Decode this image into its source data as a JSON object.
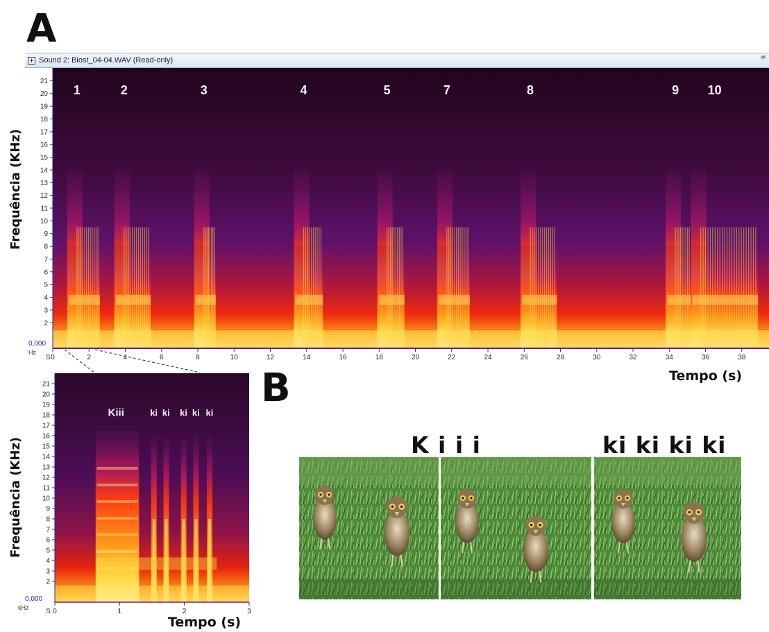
{
  "panel_a_letter": "A",
  "panel_b_letter": "B",
  "window": {
    "title": "Sound 2: Biost_04-04.WAV (Read-only)",
    "restore_glyph": "ᵅᴷ"
  },
  "colors": {
    "titlebar_text": "#102040",
    "axis_blue": "#1a2aa8",
    "spec_low": "#140518",
    "spec_mid": "#8a1a8a",
    "spec_high": "#ff2a10",
    "spec_peak": "#ffe14a"
  },
  "chart_data": [
    {
      "type": "heatmap",
      "name_on_screen": "spectrogram-main",
      "ylabel": "Frequência (KHz)",
      "xlabel": "Tempo (s)",
      "y_unit": "Hz",
      "x_unit": "S",
      "y_zero_label": "0,000",
      "xlim": [
        0,
        39.5
      ],
      "ylim": [
        0,
        22
      ],
      "y_ticks": [
        2,
        3,
        4,
        5,
        6,
        7,
        8,
        9,
        10,
        11,
        12,
        13,
        14,
        15,
        16,
        17,
        18,
        19,
        20,
        21
      ],
      "x_ticks": [
        0,
        2,
        4,
        6,
        8,
        10,
        12,
        14,
        16,
        18,
        20,
        22,
        24,
        26,
        28,
        30,
        32,
        34,
        36,
        38
      ],
      "x_tick_labels": [
        "0",
        "2",
        "4",
        "6",
        "8",
        "10",
        "12",
        "14",
        "16",
        "18",
        "20",
        "22",
        "24",
        "26",
        "28",
        "30",
        "32",
        "34",
        "36",
        "38"
      ],
      "calls": [
        {
          "label": "1",
          "start": 0.8,
          "end": 2.6
        },
        {
          "label": "2",
          "start": 3.4,
          "end": 5.4
        },
        {
          "label": "3",
          "start": 7.8,
          "end": 9.0
        },
        {
          "label": "4",
          "start": 13.3,
          "end": 14.9
        },
        {
          "label": "5",
          "start": 17.9,
          "end": 19.4
        },
        {
          "label": "7",
          "start": 21.2,
          "end": 23.0
        },
        {
          "label": "8",
          "start": 25.8,
          "end": 27.8
        },
        {
          "label": "9",
          "start": 33.8,
          "end": 35.2
        },
        {
          "label": "10",
          "start": 35.2,
          "end": 38.9
        }
      ]
    },
    {
      "type": "heatmap",
      "name_on_screen": "spectrogram-zoom",
      "ylabel": "Frequência (KHz)",
      "xlabel": "Tempo (s)",
      "y_unit": "kHz",
      "x_unit": "S",
      "y_zero_label": "0,000",
      "xlim": [
        0,
        3
      ],
      "ylim": [
        0,
        22
      ],
      "y_ticks": [
        2,
        3,
        4,
        5,
        6,
        7,
        8,
        9,
        10,
        11,
        12,
        13,
        14,
        15,
        16,
        17,
        18,
        19,
        20,
        21
      ],
      "x_ticks": [
        0,
        1,
        2,
        3
      ],
      "x_tick_labels": [
        "0",
        "1",
        "2",
        "3"
      ],
      "annotations": [
        {
          "text": "Kiii",
          "x": 0.82,
          "y": 18.3
        },
        {
          "text": "ki",
          "x": 1.47,
          "y": 18.3
        },
        {
          "text": "ki",
          "x": 1.66,
          "y": 18.3
        },
        {
          "text": "ki",
          "x": 1.93,
          "y": 18.3
        },
        {
          "text": "ki",
          "x": 2.12,
          "y": 18.3
        },
        {
          "text": "ki",
          "x": 2.33,
          "y": 18.3
        }
      ]
    }
  ],
  "panel_b": {
    "syllables_long": "K i i i",
    "syllables_short": "ki ki ki ki",
    "photos": [
      {
        "description_icon": "owl-pair-photo"
      },
      {
        "description_icon": "owl-pair-photo"
      },
      {
        "description_icon": "owl-pair-photo"
      }
    ]
  }
}
